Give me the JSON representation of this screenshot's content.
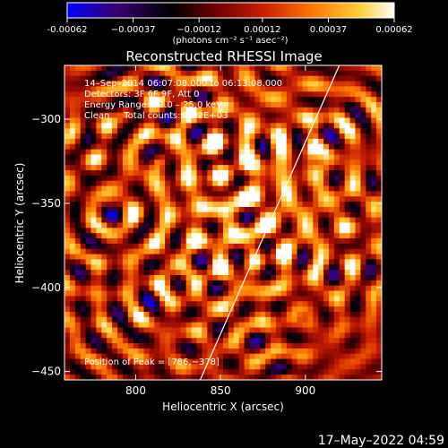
{
  "chart_data": {
    "type": "heatmap",
    "title": "Reconstructed RHESSI Image",
    "xlabel": "Heliocentric X (arcsec)",
    "ylabel": "Heliocentric Y (arcsec)",
    "xlim": [
      758,
      945
    ],
    "ylim": [
      -455,
      -268
    ],
    "x_ticks": [
      800,
      850,
      900
    ],
    "x_tick_labels": [
      "800",
      "850",
      "900"
    ],
    "y_ticks": [
      -300,
      -350,
      -400,
      -450
    ],
    "y_tick_labels": [
      "−300",
      "−350",
      "−400",
      "−450"
    ],
    "colorbar": {
      "range": [
        -0.00062,
        0.00062
      ],
      "ticks": [
        -0.00062,
        -0.00037,
        -0.00012,
        0.00012,
        0.00037,
        0.00062
      ],
      "tick_labels": [
        "-0.00062",
        "−0.00037",
        "−0.00012",
        "0.00012",
        "0.00037",
        "0.00062"
      ],
      "unit_label": "(photons cm⁻² s⁻¹ asec⁻²)",
      "colormap": [
        "#0000ff",
        "#3a0070",
        "#000000",
        "#6a0000",
        "#c81e00",
        "#ff7800",
        "#ffd23c",
        "#ffffff"
      ]
    },
    "annotations": {
      "time_range": "14–Sep–2014 06:07:08.000 to 06:13:08.000",
      "detectors": "Detectors: 3F 6F 9F, Att 0",
      "energy": "Energy Range: 12.0 – 25.0 keV",
      "method": "Clean     Total counts: 2.22E+03",
      "peak": "Position of Peak = [786,−378]"
    },
    "peak_position": [
      786,
      -378
    ],
    "limb_line": [
      [
        838,
        -455
      ],
      [
        920,
        -268
      ]
    ],
    "timestamp": "17–May–2022 04:59"
  }
}
